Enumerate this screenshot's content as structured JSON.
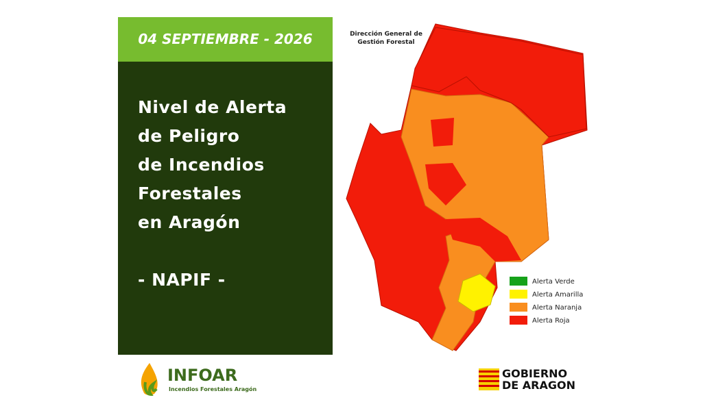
{
  "date": "04 SEPTIEMBRE - 2026",
  "title_lines": [
    "Nivel de Alerta",
    "de Peligro",
    "de Incendios",
    "Forestales",
    "en Aragón"
  ],
  "subtitle": "- NAPIF -",
  "map": {
    "source_lines": [
      "Dirección General de",
      "Gestión Forestal"
    ]
  },
  "legend": [
    "Alerta Verde",
    "Alerta Amarilla",
    "Alerta Naranja",
    "Alerta Roja"
  ],
  "footer": {
    "left": {
      "name": "INFOAR",
      "tagline": "Incendios Forestales Aragón"
    },
    "right": {
      "lines": [
        "GOBIERNO",
        "DE ARAGON"
      ]
    }
  }
}
